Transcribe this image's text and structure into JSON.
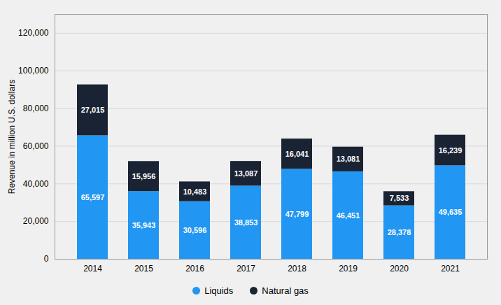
{
  "chart_data": {
    "type": "bar",
    "stacked": true,
    "data_labels": true,
    "grid": true,
    "legend": "bottom",
    "ylabel": "Revenue in million U.S. dollars",
    "categories": [
      "2014",
      "2015",
      "2016",
      "2017",
      "2018",
      "2019",
      "2020",
      "2021"
    ],
    "series": [
      {
        "name": "Liquids",
        "color": "#2196f3",
        "values": [
          65597,
          35943,
          30596,
          38853,
          47799,
          46451,
          28378,
          49635
        ],
        "value_labels": [
          "65,597",
          "35,943",
          "30,596",
          "38,853",
          "47,799",
          "46,451",
          "28,378",
          "49,635"
        ]
      },
      {
        "name": "Natural gas",
        "color": "#1a2333",
        "values": [
          27015,
          15956,
          10483,
          13087,
          16041,
          13081,
          7533,
          16239
        ],
        "value_labels": [
          "27,015",
          "15,956",
          "10,483",
          "13,087",
          "16,041",
          "13,081",
          "7,533",
          "16,239"
        ]
      }
    ],
    "ylim": [
      0,
      130000
    ],
    "yticks": [
      0,
      {
        "value": 20000,
        "label": "20,000"
      },
      {
        "value": 40000,
        "label": "40,000"
      },
      {
        "value": 60000,
        "label": "60,000"
      },
      {
        "value": 80000,
        "label": "80,000"
      },
      {
        "value": 100000,
        "label": "100,000"
      },
      {
        "value": 120000,
        "label": "120,000"
      }
    ]
  }
}
